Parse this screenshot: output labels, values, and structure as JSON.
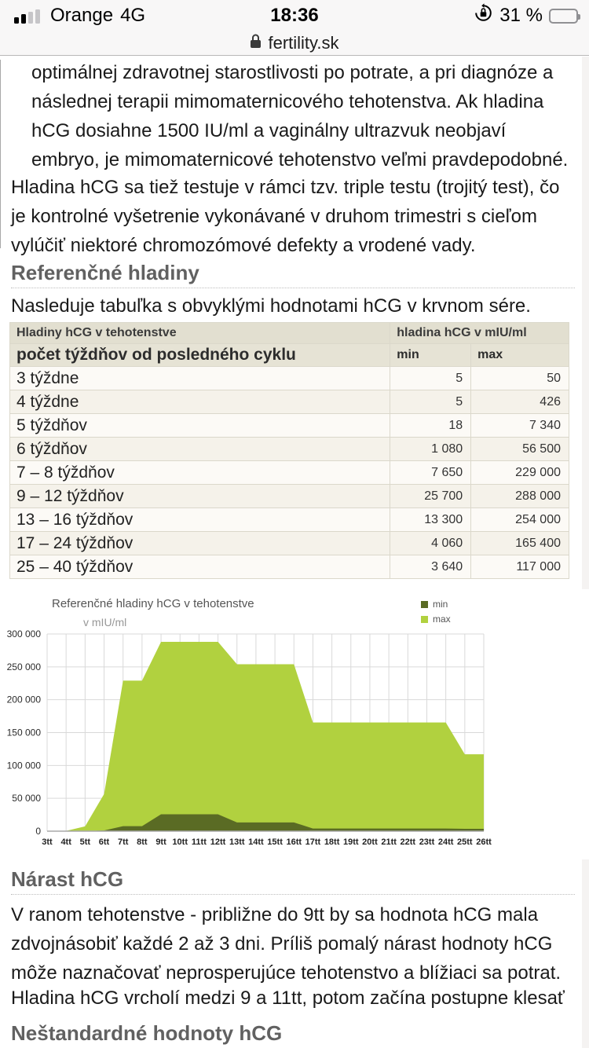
{
  "status_bar": {
    "carrier": "Orange",
    "network": "4G",
    "time": "18:36",
    "battery_percent": "31 %",
    "signal_icon": "signal-bars-2-of-4",
    "orientation_lock_icon": "orientation-lock",
    "battery_icon": "battery-low"
  },
  "url_bar": {
    "lock_icon": "padlock",
    "domain": "fertility.sk"
  },
  "article": {
    "p1": "optimálnej zdravotnej starostlivosti po potrate, a pri diagnóze a následnej terapii mimomaternicového tehotenstva. Ak hladina hCG dosiahne 1500 IU/ml a vaginálny ultrazvuk neobjaví embryo, je mimomaternicové tehotenstvo veľmi pravdepodobné.",
    "p2": "Hladina hCG sa tiež testuje v rámci tzv. triple testu (trojitý test), čo je kontrolné vyšetrenie vykonávané v druhom trimestri s cieľom vylúčiť niektoré chromozómové defekty a vrodené vady.",
    "heading_reference": "Referenčné hladiny",
    "p3": "Nasleduje tabuľka s obvyklými hodnotami hCG v krvnom sére.",
    "heading_narast": "Nárast hCG",
    "p4": "V ranom tehotenstve - približne do 9tt by sa hodnota hCG mala zdvojnásobiť každé 2 až 3 dni. Príliš pomalý nárast hodnoty hCG môže naznačovať neprosperujúce tehotenstvo a blížiaci sa potrat.",
    "p5": "Hladina hCG vrcholí medzi 9 a 11tt, potom začína postupne klesať",
    "heading_nestandard": "Neštandardné hodnoty hCG"
  },
  "table": {
    "header1_left": "Hladiny hCG v tehotenstve",
    "header1_right": "hladina hCG v mIU/ml",
    "header2": {
      "weeks": "počet týždňov od posledného cyklu",
      "min": "min",
      "max": "max"
    },
    "rows": [
      [
        "3 týždne",
        "5",
        "50"
      ],
      [
        "4 týždne",
        "5",
        "426"
      ],
      [
        "5 týždňov",
        "18",
        "7 340"
      ],
      [
        "6 týždňov",
        "1 080",
        "56 500"
      ],
      [
        "7 – 8 týždňov",
        "7 650",
        "229 000"
      ],
      [
        "9 – 12 týždňov",
        "25 700",
        "288 000"
      ],
      [
        "13 – 16 týždňov",
        "13 300",
        "254 000"
      ],
      [
        "17 – 24 týždňov",
        "4 060",
        "165 400"
      ],
      [
        "25 – 40 týždňov",
        "3 640",
        "117 000"
      ]
    ]
  },
  "chart_data": {
    "type": "area",
    "title": "Referenčné hladiny hCG v tehotenstve",
    "subtitle": "v mIU/ml",
    "x": [
      "3tt",
      "4tt",
      "5tt",
      "6tt",
      "7tt",
      "8tt",
      "9tt",
      "10tt",
      "11tt",
      "12tt",
      "13tt",
      "14tt",
      "15tt",
      "16tt",
      "17tt",
      "18tt",
      "19tt",
      "20tt",
      "21tt",
      "22tt",
      "23tt",
      "24tt",
      "25tt",
      "26tt"
    ],
    "series": [
      {
        "name": "min",
        "color": "#5a6b24",
        "values": [
          5,
          5,
          18,
          1080,
          7650,
          7650,
          25700,
          25700,
          25700,
          25700,
          13300,
          13300,
          13300,
          13300,
          4060,
          4060,
          4060,
          4060,
          4060,
          4060,
          4060,
          4060,
          3640,
          3640
        ]
      },
      {
        "name": "max",
        "color": "#b1d13f",
        "values": [
          50,
          426,
          7340,
          56500,
          229000,
          229000,
          288000,
          288000,
          288000,
          288000,
          254000,
          254000,
          254000,
          254000,
          165400,
          165400,
          165400,
          165400,
          165400,
          165400,
          165400,
          165400,
          117000,
          117000
        ]
      }
    ],
    "ylim": [
      0,
      300000
    ],
    "ytick_step": 50000,
    "ytick_labels": [
      "0",
      "50 000",
      "100 000",
      "150 000",
      "200 000",
      "250 000",
      "300 000"
    ],
    "xlabel": "",
    "ylabel": "v mIU/ml",
    "grid": true,
    "legend_position": "top-right",
    "colors": {
      "grid": "#d9d9d9",
      "axis": "#a8a8a8"
    }
  }
}
